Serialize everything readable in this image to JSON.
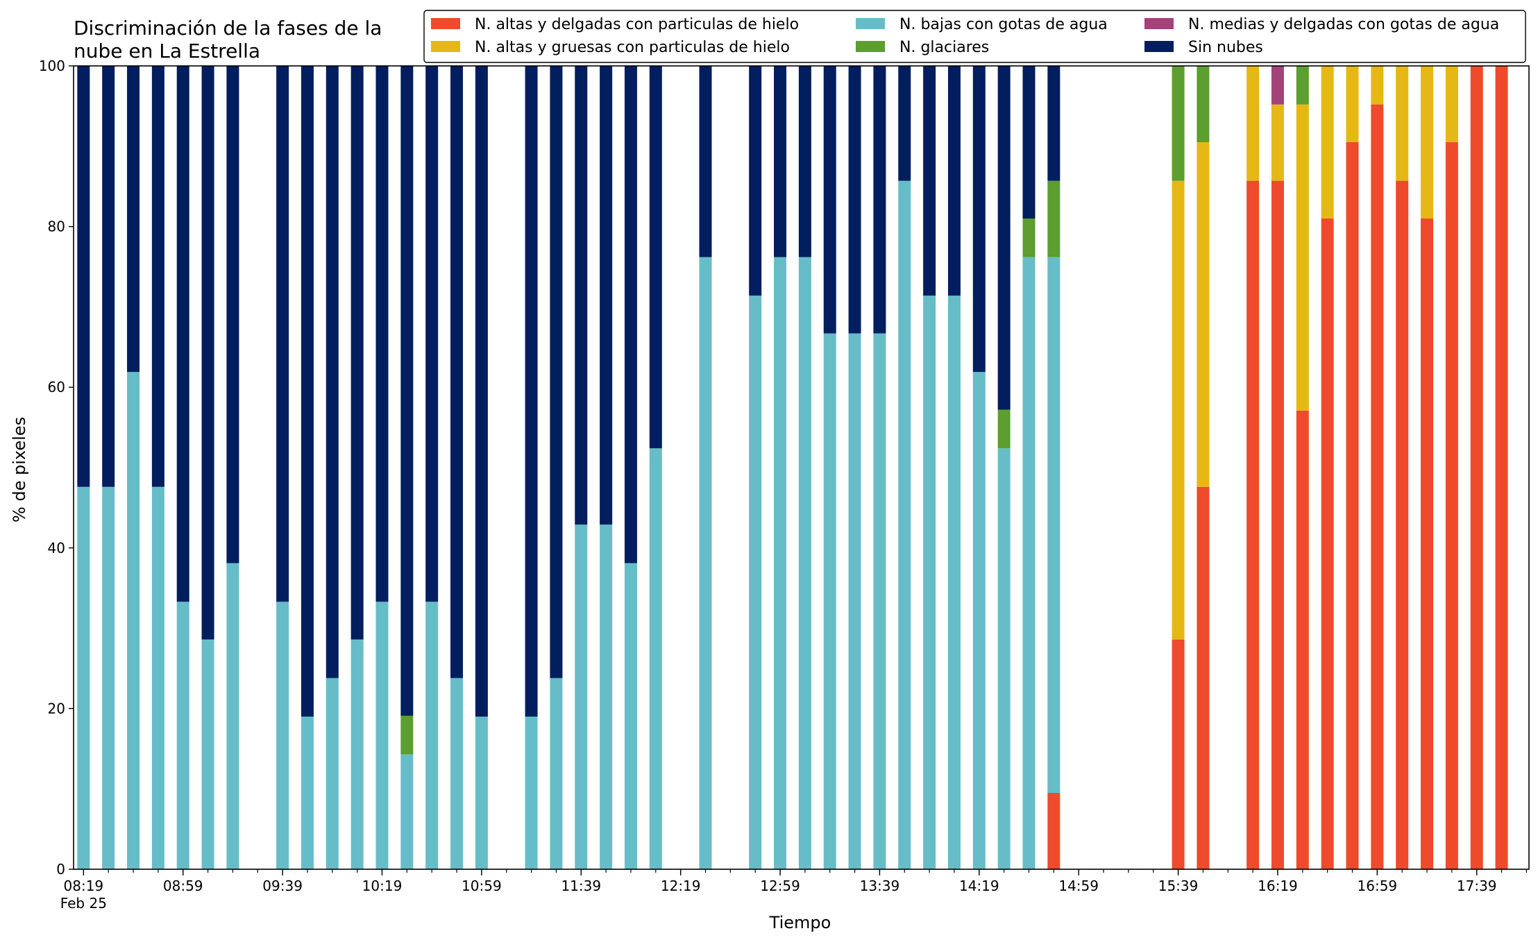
{
  "chart_data": {
    "type": "bar",
    "stacked": true,
    "title_lines": [
      "Discriminación de la fases de la",
      "nube en La Estrella"
    ],
    "xlabel": "Tiempo",
    "ylabel": "% de pixeles",
    "ylim": [
      0,
      100
    ],
    "yticks": [
      0,
      20,
      40,
      60,
      80,
      100
    ],
    "grid": false,
    "legend_position": "top-right",
    "x_date_label": "Feb 25",
    "x_range": [
      "08:15",
      "18:00"
    ],
    "x_major_ticks": [
      "08:19",
      "08:59",
      "09:39",
      "10:19",
      "10:59",
      "11:39",
      "12:19",
      "12:59",
      "13:39",
      "14:19",
      "14:59",
      "15:39",
      "16:19",
      "16:59",
      "17:39"
    ],
    "x_minor_ticks": [
      "08:19",
      "08:29",
      "08:39",
      "08:49",
      "08:59",
      "09:09",
      "09:19",
      "09:29",
      "09:39",
      "09:49",
      "09:59",
      "10:09",
      "10:19",
      "10:29",
      "10:39",
      "10:49",
      "10:59",
      "11:09",
      "11:19",
      "11:29",
      "11:39",
      "11:49",
      "11:59",
      "12:09",
      "12:19",
      "12:29",
      "12:39",
      "12:49",
      "12:59",
      "13:09",
      "13:19",
      "13:29",
      "13:39",
      "13:49",
      "13:59",
      "14:09",
      "14:19",
      "14:29",
      "14:39",
      "14:49",
      "14:59",
      "15:09",
      "15:19",
      "15:29",
      "15:39",
      "15:49",
      "15:59",
      "16:09",
      "16:19",
      "16:29",
      "16:39",
      "16:49",
      "16:59",
      "17:09",
      "17:19",
      "17:29",
      "17:39",
      "17:49",
      "17:59"
    ],
    "series": [
      {
        "name": "N. altas y delgadas con particulas de hielo",
        "color": "#ef4a2b"
      },
      {
        "name": "N. altas y gruesas con particulas de hielo",
        "color": "#e6b815"
      },
      {
        "name": "N. bajas con gotas de agua",
        "color": "#66bdc8"
      },
      {
        "name": "N. glaciares",
        "color": "#5c9e2f"
      },
      {
        "name": "N. medias y delgadas con gotas de agua",
        "color": "#a3437a"
      },
      {
        "name": "Sin nubes",
        "color": "#021e5e"
      }
    ],
    "stack_order": [
      "N. altas y delgadas con particulas de hielo",
      "N. altas y gruesas con particulas de hielo",
      "N. bajas con gotas de agua",
      "N. glaciares",
      "N. medias y delgadas con gotas de agua",
      "Sin nubes"
    ],
    "bars": [
      {
        "x": "08:19",
        "values": [
          0,
          0,
          47.6,
          0,
          0,
          52.4
        ]
      },
      {
        "x": "08:29",
        "values": [
          0,
          0,
          47.6,
          0,
          0,
          52.4
        ]
      },
      {
        "x": "08:39",
        "values": [
          0,
          0,
          61.9,
          0,
          0,
          38.1
        ]
      },
      {
        "x": "08:49",
        "values": [
          0,
          0,
          47.6,
          0,
          0,
          52.4
        ]
      },
      {
        "x": "08:59",
        "values": [
          0,
          0,
          33.3,
          0,
          0,
          66.7
        ]
      },
      {
        "x": "09:09",
        "values": [
          0,
          0,
          28.6,
          0,
          0,
          71.4
        ]
      },
      {
        "x": "09:19",
        "values": [
          0,
          0,
          38.1,
          0,
          0,
          61.9
        ]
      },
      {
        "x": "09:39",
        "values": [
          0,
          0,
          33.3,
          0,
          0,
          66.7
        ]
      },
      {
        "x": "09:49",
        "values": [
          0,
          0,
          19.0,
          0,
          0,
          81.0
        ]
      },
      {
        "x": "09:59",
        "values": [
          0,
          0,
          23.8,
          0,
          0,
          76.2
        ]
      },
      {
        "x": "10:09",
        "values": [
          0,
          0,
          28.6,
          0,
          0,
          71.4
        ]
      },
      {
        "x": "10:19",
        "values": [
          0,
          0,
          33.3,
          0,
          0,
          66.7
        ]
      },
      {
        "x": "10:29",
        "values": [
          0,
          0,
          14.3,
          4.8,
          0,
          80.9
        ]
      },
      {
        "x": "10:39",
        "values": [
          0,
          0,
          33.3,
          0,
          0,
          66.7
        ]
      },
      {
        "x": "10:49",
        "values": [
          0,
          0,
          23.8,
          0,
          0,
          76.2
        ]
      },
      {
        "x": "10:59",
        "values": [
          0,
          0,
          19.0,
          0,
          0,
          81.0
        ]
      },
      {
        "x": "11:19",
        "values": [
          0,
          0,
          19.0,
          0,
          0,
          81.0
        ]
      },
      {
        "x": "11:29",
        "values": [
          0,
          0,
          23.8,
          0,
          0,
          76.2
        ]
      },
      {
        "x": "11:39",
        "values": [
          0,
          0,
          42.9,
          0,
          0,
          57.1
        ]
      },
      {
        "x": "11:49",
        "values": [
          0,
          0,
          42.9,
          0,
          0,
          57.1
        ]
      },
      {
        "x": "11:59",
        "values": [
          0,
          0,
          38.1,
          0,
          0,
          61.9
        ]
      },
      {
        "x": "12:09",
        "values": [
          0,
          0,
          52.4,
          0,
          0,
          47.6
        ]
      },
      {
        "x": "12:29",
        "values": [
          0,
          0,
          76.2,
          0,
          0,
          23.8
        ]
      },
      {
        "x": "12:49",
        "values": [
          0,
          0,
          71.4,
          0,
          0,
          28.6
        ]
      },
      {
        "x": "12:59",
        "values": [
          0,
          0,
          76.2,
          0,
          0,
          23.8
        ]
      },
      {
        "x": "13:09",
        "values": [
          0,
          0,
          76.2,
          0,
          0,
          23.8
        ]
      },
      {
        "x": "13:19",
        "values": [
          0,
          0,
          66.7,
          0,
          0,
          33.3
        ]
      },
      {
        "x": "13:29",
        "values": [
          0,
          0,
          66.7,
          0,
          0,
          33.3
        ]
      },
      {
        "x": "13:39",
        "values": [
          0,
          0,
          66.7,
          0,
          0,
          33.3
        ]
      },
      {
        "x": "13:49",
        "values": [
          0,
          0,
          85.7,
          0,
          0,
          14.3
        ]
      },
      {
        "x": "13:59",
        "values": [
          0,
          0,
          71.4,
          0,
          0,
          28.6
        ]
      },
      {
        "x": "14:09",
        "values": [
          0,
          0,
          71.4,
          0,
          0,
          28.6
        ]
      },
      {
        "x": "14:19",
        "values": [
          0,
          0,
          61.9,
          0,
          0,
          38.1
        ]
      },
      {
        "x": "14:29",
        "values": [
          0,
          0,
          52.4,
          4.8,
          0,
          42.8
        ]
      },
      {
        "x": "14:39",
        "values": [
          0,
          0,
          76.2,
          4.8,
          0,
          19.0
        ]
      },
      {
        "x": "14:49",
        "values": [
          9.5,
          0,
          66.7,
          9.5,
          0,
          14.3
        ]
      },
      {
        "x": "15:39",
        "values": [
          28.6,
          57.1,
          0,
          14.3,
          0,
          0
        ]
      },
      {
        "x": "15:49",
        "values": [
          47.6,
          42.9,
          0,
          9.5,
          0,
          0
        ]
      },
      {
        "x": "16:09",
        "values": [
          85.7,
          14.3,
          0,
          0,
          0,
          0
        ]
      },
      {
        "x": "16:19",
        "values": [
          85.7,
          9.5,
          0,
          0,
          4.8,
          0
        ]
      },
      {
        "x": "16:29",
        "values": [
          57.1,
          38.1,
          0,
          4.8,
          0,
          0
        ]
      },
      {
        "x": "16:39",
        "values": [
          81.0,
          19.0,
          0,
          0,
          0,
          0
        ]
      },
      {
        "x": "16:49",
        "values": [
          90.5,
          9.5,
          0,
          0,
          0,
          0
        ]
      },
      {
        "x": "16:59",
        "values": [
          95.2,
          4.8,
          0,
          0,
          0,
          0
        ]
      },
      {
        "x": "17:09",
        "values": [
          85.7,
          14.3,
          0,
          0,
          0,
          0
        ]
      },
      {
        "x": "17:19",
        "values": [
          81.0,
          19.0,
          0,
          0,
          0,
          0
        ]
      },
      {
        "x": "17:29",
        "values": [
          90.5,
          9.5,
          0,
          0,
          0,
          0
        ]
      },
      {
        "x": "17:39",
        "values": [
          100,
          0,
          0,
          0,
          0,
          0
        ]
      },
      {
        "x": "17:49",
        "values": [
          100,
          0,
          0,
          0,
          0,
          0
        ]
      }
    ]
  }
}
